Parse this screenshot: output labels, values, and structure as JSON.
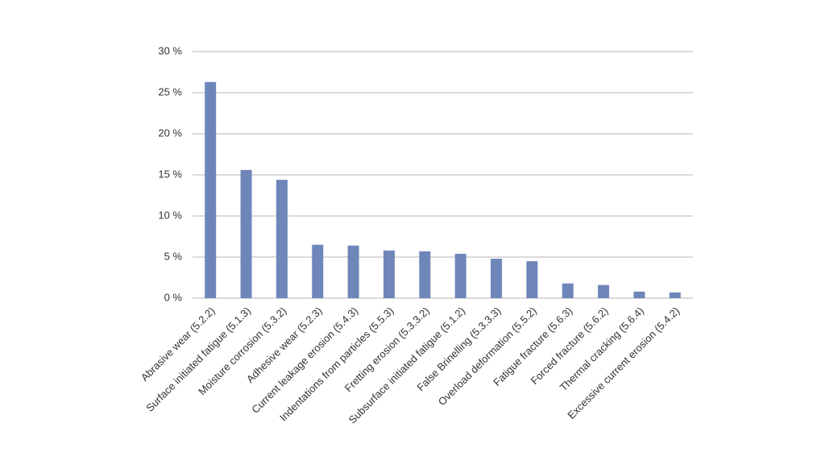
{
  "chart_data": {
    "type": "bar",
    "categories": [
      "Abrasive wear (5.2.2)",
      "Surface initiated fatigue (5.1.3)",
      "Moisture corrosion (5.3.2)",
      "Adhesive wear (5.2.3)",
      "Current leakage erosion (5.4.3)",
      "Indentations from particles (5.5.3)",
      "Fretting erosion (5.3.3.2)",
      "Subsurface initiated fatigue (5.1.2)",
      "False Brinelling (5.3.3.3)",
      "Overload deformation (5.5.2)",
      "Fatigue fracture (5.6.3)",
      "Forced fracture (5.6.2)",
      "Thermal cracking (5.6.4)",
      "Excessive current erosion (5.4.2)"
    ],
    "values": [
      26.3,
      15.6,
      14.4,
      6.5,
      6.4,
      5.8,
      5.7,
      5.4,
      4.8,
      4.5,
      1.8,
      1.6,
      0.8,
      0.7
    ],
    "color": "#6f86b9",
    "ylim": [
      0,
      30
    ],
    "yticks": [
      {
        "value": 0,
        "label": "0 %"
      },
      {
        "value": 5,
        "label": "5 %"
      },
      {
        "value": 10,
        "label": "10 %"
      },
      {
        "value": 15,
        "label": "15 %"
      },
      {
        "value": 20,
        "label": "20 %"
      },
      {
        "value": 25,
        "label": "25 %"
      },
      {
        "value": 30,
        "label": "30 %"
      }
    ],
    "grid": true
  }
}
